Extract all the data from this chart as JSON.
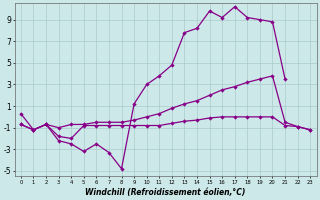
{
  "xlabel": "Windchill (Refroidissement éolien,°C)",
  "background_color": "#cce8e8",
  "grid_color": "#aacccc",
  "line_color": "#880088",
  "x_hours": [
    0,
    1,
    2,
    3,
    4,
    5,
    6,
    7,
    8,
    9,
    10,
    11,
    12,
    13,
    14,
    15,
    16,
    17,
    18,
    19,
    20,
    21,
    22,
    23
  ],
  "series1": [
    0.3,
    -1.2,
    -0.7,
    -2.2,
    -2.5,
    -3.2,
    -2.5,
    -3.3,
    -4.8,
    1.2,
    3.0,
    3.8,
    4.8,
    7.8,
    8.2,
    9.8,
    9.2,
    10.2,
    9.2,
    9.0,
    8.8,
    3.5,
    null,
    null
  ],
  "series2": [
    -0.7,
    -1.2,
    -0.7,
    -1.0,
    -0.7,
    -0.7,
    -0.5,
    -0.5,
    -0.5,
    -0.3,
    0.0,
    0.3,
    0.8,
    1.2,
    1.5,
    2.0,
    2.5,
    2.8,
    3.2,
    3.5,
    3.8,
    -0.5,
    -0.9,
    -1.2
  ],
  "series3": [
    -0.7,
    -1.2,
    -0.7,
    -1.8,
    -2.0,
    -0.8,
    -0.8,
    -0.8,
    -0.8,
    -0.8,
    -0.8,
    -0.8,
    -0.6,
    -0.4,
    -0.3,
    -0.1,
    0.0,
    0.0,
    0.0,
    0.0,
    0.0,
    -0.8,
    -0.9,
    -1.2
  ],
  "ylim": [
    -5.5,
    10.5
  ],
  "xlim": [
    -0.5,
    23.5
  ],
  "yticks": [
    -5,
    -3,
    -1,
    1,
    3,
    5,
    7,
    9
  ],
  "xticks": [
    0,
    1,
    2,
    3,
    4,
    5,
    6,
    7,
    8,
    9,
    10,
    11,
    12,
    13,
    14,
    15,
    16,
    17,
    18,
    19,
    20,
    21,
    22,
    23
  ]
}
